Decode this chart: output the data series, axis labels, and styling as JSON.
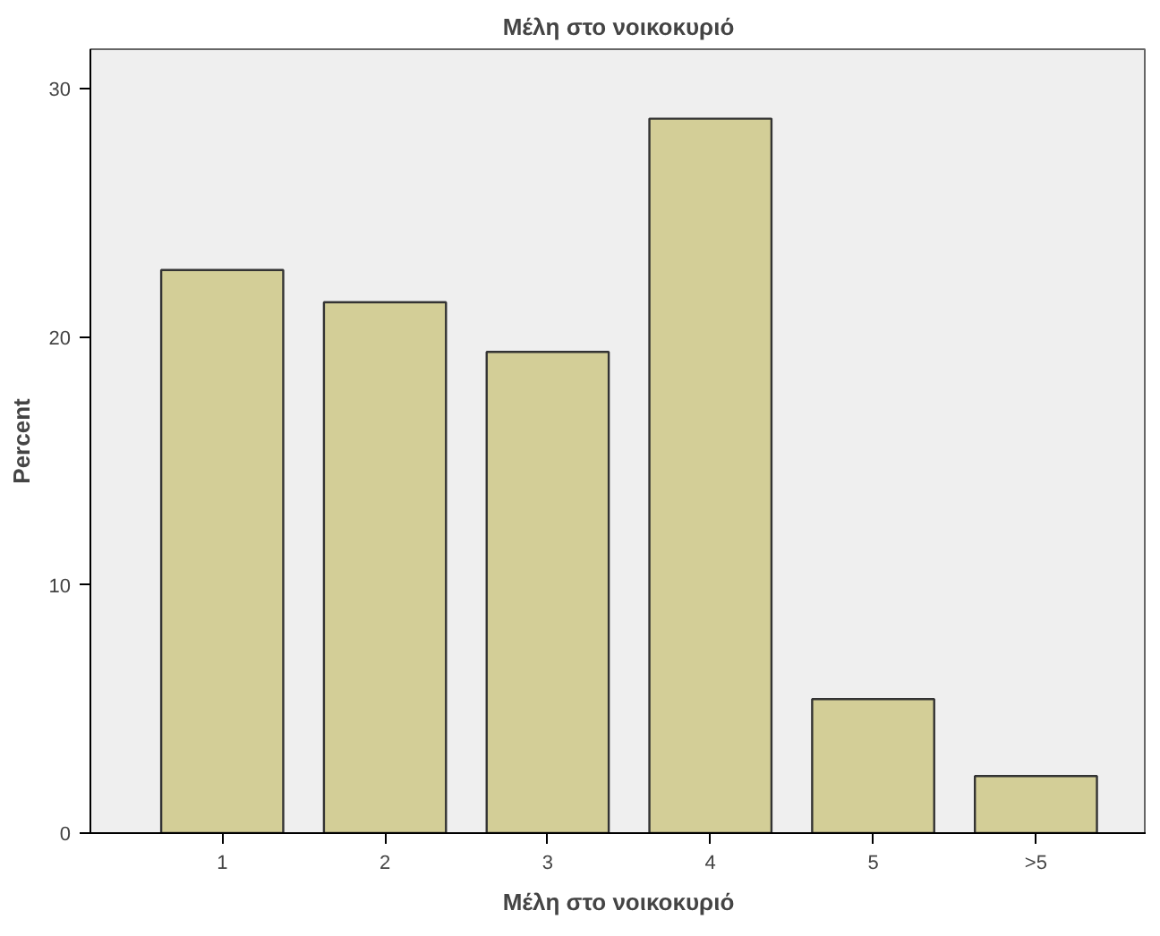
{
  "chart_data": {
    "type": "bar",
    "title": "Μέλη στο νοικοκυριό",
    "xlabel": "Μέλη στο νοικοκυριό",
    "ylabel": "Percent",
    "categories": [
      "1",
      "2",
      "3",
      "4",
      "5",
      ">5"
    ],
    "values": [
      22.7,
      21.4,
      19.4,
      28.8,
      5.4,
      2.3
    ],
    "color": "#d3ce97",
    "ylim": [
      0,
      31.6
    ],
    "yticks": [
      0,
      10,
      20,
      30
    ],
    "grid": false
  }
}
